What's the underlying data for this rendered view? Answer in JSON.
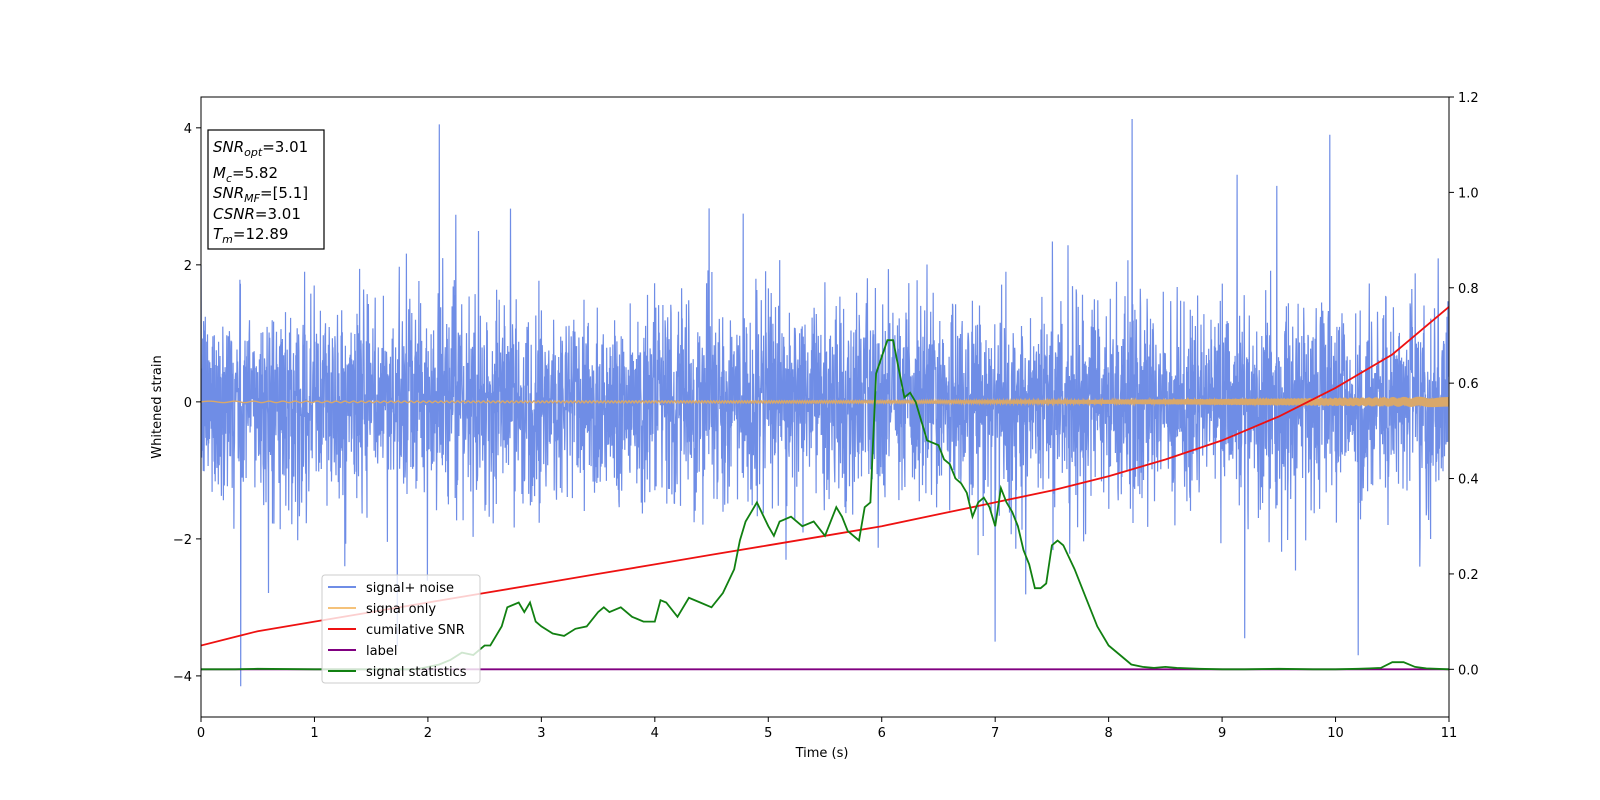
{
  "chart_data": {
    "type": "line",
    "xlabel": "Time (s)",
    "ylabel": "Whitened strain",
    "xlim": [
      0,
      11
    ],
    "ylim_left": [
      -4.6,
      4.45
    ],
    "ylim_right": [
      -0.1,
      1.2
    ],
    "x_ticks": [
      "0",
      "1",
      "2",
      "3",
      "4",
      "5",
      "6",
      "7",
      "8",
      "9",
      "10",
      "11"
    ],
    "y_left_ticks": [
      "4",
      "2",
      "0",
      "−2",
      "−4"
    ],
    "y_right_ticks": [
      "1.2",
      "1.0",
      "0.8",
      "0.6",
      "0.4",
      "0.2",
      "0.0"
    ],
    "info_box": {
      "lines": [
        {
          "sym": "SNR",
          "sub": "opt",
          "val": "=3.01"
        },
        {
          "sym": "M",
          "sub": "c",
          "val": "=5.82"
        },
        {
          "sym": "SNR",
          "sub": "MF",
          "val": "=[5.1]"
        },
        {
          "sym": "CSNR",
          "sub": "",
          "val": "=3.01"
        },
        {
          "sym": "T",
          "sub": "m",
          "val": "=12.89"
        }
      ]
    },
    "legend": {
      "location": "lower-left",
      "entries": [
        {
          "label": "signal+ noise",
          "color": "#6f8de6"
        },
        {
          "label": "signal only",
          "color": "#f5c27a"
        },
        {
          "label": "cumilative SNR",
          "color": "#ee1111"
        },
        {
          "label": "label",
          "color": "#800080"
        },
        {
          "label": "signal statistics",
          "color": "#118011"
        }
      ]
    },
    "series": [
      {
        "name": "signal+ noise",
        "axis": "left",
        "color": "#6f8de6",
        "description_of_values": "white noise, std ~0.75, occasional spikes to ~4",
        "notable_peaks": [
          [
            0.35,
            -4.15
          ],
          [
            2.1,
            4.05
          ],
          [
            9.95,
            3.9
          ],
          [
            10.2,
            -3.7
          ],
          [
            9.2,
            -3.45
          ],
          [
            7.0,
            -3.5
          ]
        ]
      },
      {
        "name": "signal only",
        "axis": "left",
        "color": "#d9a86a",
        "envelope": {
          "x": [
            0,
            2,
            4,
            6,
            8,
            9,
            10,
            11
          ],
          "amp": [
            0.01,
            0.012,
            0.015,
            0.02,
            0.03,
            0.045,
            0.06,
            0.08
          ]
        }
      },
      {
        "name": "cumilative SNR",
        "axis": "right",
        "color": "#ee1111",
        "x": [
          0,
          0.5,
          1,
          1.5,
          2,
          2.5,
          3,
          3.5,
          4,
          4.5,
          5,
          5.5,
          6,
          6.5,
          7,
          7.5,
          8,
          8.5,
          9,
          9.5,
          10,
          10.5,
          11
        ],
        "y": [
          0.05,
          0.08,
          0.1,
          0.12,
          0.14,
          0.16,
          0.18,
          0.2,
          0.22,
          0.24,
          0.26,
          0.28,
          0.3,
          0.325,
          0.35,
          0.375,
          0.405,
          0.44,
          0.48,
          0.53,
          0.59,
          0.66,
          0.76
        ]
      },
      {
        "name": "label",
        "axis": "right",
        "color": "#800080",
        "x": [
          0,
          11
        ],
        "y": [
          0.0,
          0.0
        ]
      },
      {
        "name": "signal statistics",
        "axis": "right",
        "color": "#118011",
        "x": [
          0,
          0.3,
          0.5,
          1.0,
          1.5,
          1.9,
          2.1,
          2.2,
          2.3,
          2.4,
          2.5,
          2.55,
          2.6,
          2.65,
          2.7,
          2.8,
          2.85,
          2.9,
          2.95,
          3.0,
          3.1,
          3.2,
          3.3,
          3.4,
          3.5,
          3.55,
          3.6,
          3.7,
          3.8,
          3.9,
          4.0,
          4.05,
          4.1,
          4.2,
          4.3,
          4.4,
          4.5,
          4.6,
          4.7,
          4.75,
          4.8,
          4.85,
          4.9,
          5.0,
          5.05,
          5.1,
          5.2,
          5.3,
          5.4,
          5.5,
          5.6,
          5.65,
          5.7,
          5.8,
          5.85,
          5.9,
          5.95,
          6.05,
          6.1,
          6.15,
          6.2,
          6.25,
          6.3,
          6.35,
          6.4,
          6.5,
          6.55,
          6.6,
          6.65,
          6.7,
          6.75,
          6.8,
          6.85,
          6.9,
          6.95,
          7.0,
          7.05,
          7.1,
          7.15,
          7.2,
          7.25,
          7.3,
          7.35,
          7.4,
          7.45,
          7.5,
          7.55,
          7.6,
          7.7,
          7.8,
          7.9,
          8.0,
          8.1,
          8.2,
          8.3,
          8.4,
          8.5,
          8.6,
          8.8,
          9.0,
          9.2,
          9.5,
          9.8,
          10.0,
          10.2,
          10.3,
          10.4,
          10.5,
          10.6,
          10.7,
          10.8,
          11.0
        ],
        "y": [
          0.0,
          0.0,
          0.001,
          0.0,
          0.0,
          0.0,
          0.01,
          0.02,
          0.035,
          0.03,
          0.05,
          0.05,
          0.07,
          0.09,
          0.13,
          0.14,
          0.12,
          0.14,
          0.1,
          0.09,
          0.075,
          0.07,
          0.085,
          0.09,
          0.12,
          0.13,
          0.12,
          0.13,
          0.11,
          0.1,
          0.1,
          0.145,
          0.14,
          0.11,
          0.15,
          0.14,
          0.13,
          0.16,
          0.21,
          0.27,
          0.31,
          0.33,
          0.35,
          0.3,
          0.28,
          0.31,
          0.32,
          0.3,
          0.31,
          0.28,
          0.34,
          0.32,
          0.29,
          0.27,
          0.34,
          0.35,
          0.62,
          0.69,
          0.69,
          0.63,
          0.57,
          0.58,
          0.56,
          0.52,
          0.48,
          0.47,
          0.44,
          0.43,
          0.4,
          0.39,
          0.37,
          0.32,
          0.35,
          0.36,
          0.34,
          0.3,
          0.38,
          0.35,
          0.33,
          0.3,
          0.25,
          0.22,
          0.17,
          0.17,
          0.18,
          0.26,
          0.27,
          0.26,
          0.21,
          0.15,
          0.09,
          0.05,
          0.03,
          0.01,
          0.005,
          0.003,
          0.005,
          0.003,
          0.001,
          0.0,
          0.0,
          0.001,
          0.0,
          0.0,
          0.001,
          0.002,
          0.003,
          0.015,
          0.015,
          0.005,
          0.002,
          0.0
        ]
      }
    ],
    "grid": false
  }
}
